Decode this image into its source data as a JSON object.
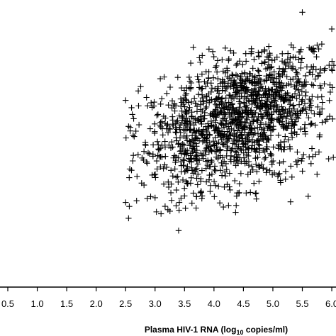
{
  "chart_data": {
    "type": "scatter",
    "title": "",
    "xlabel": {
      "main": "Plasma HIV-1 RNA (log",
      "sub": "10",
      "rest": " copies/ml)"
    },
    "ylabel": "",
    "xlim": [
      0.4,
      6.2
    ],
    "ylim": [
      0,
      1
    ],
    "xticks": [
      "0.5",
      "1.0",
      "1.5",
      "2.0",
      "2.5",
      "3.0",
      "3.5",
      "4.0",
      "4.5",
      "5.0",
      "5.5",
      "6.0"
    ],
    "grid": false,
    "marker": "plus",
    "point_color": "#000000",
    "sample_points": [
      [
        5.5,
        0.976
      ],
      [
        6.0,
        0.915
      ],
      [
        5.83,
        0.86
      ],
      [
        3.2,
        0.68
      ],
      [
        3.45,
        0.7
      ],
      [
        2.55,
        0.56
      ],
      [
        2.6,
        0.4
      ],
      [
        3.0,
        0.3
      ],
      [
        3.4,
        0.18
      ],
      [
        2.55,
        0.225
      ],
      [
        5.3,
        0.285
      ],
      [
        5.75,
        0.385
      ],
      [
        6.1,
        0.75
      ],
      [
        2.5,
        0.655
      ],
      [
        2.72,
        0.635
      ]
    ],
    "density_clusters": [
      {
        "x_mean": 4.6,
        "y_mean": 0.6,
        "x_sd": 0.72,
        "y_sd": 0.12,
        "count": 1300
      },
      {
        "x_mean": 3.6,
        "y_mean": 0.5,
        "x_sd": 0.55,
        "y_sd": 0.11,
        "count": 250
      }
    ]
  }
}
